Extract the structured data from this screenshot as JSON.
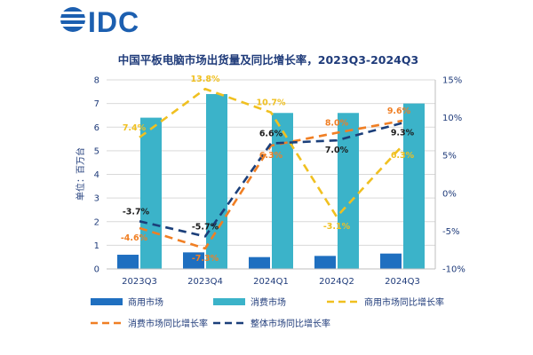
{
  "logo": {
    "text": "IDC"
  },
  "chart_data": {
    "type": "bar",
    "title": "中国平板电脑市场出货量及同比增长率，2023Q3-2024Q3",
    "ylabel": "单位：百万台",
    "categories": [
      "2023Q3",
      "2023Q4",
      "2024Q1",
      "2024Q2",
      "2024Q3"
    ],
    "ylim": [
      0,
      8
    ],
    "y2lim": [
      -10,
      15
    ],
    "yticks": [
      "0",
      "1",
      "2",
      "3",
      "4",
      "5",
      "6",
      "7",
      "8"
    ],
    "y2ticks": [
      "-10%",
      "-5%",
      "0%",
      "5%",
      "10%",
      "15%"
    ],
    "bar_series": [
      {
        "name": "商用市场",
        "color": "#1f6fc0",
        "values": [
          0.6,
          0.7,
          0.5,
          0.55,
          0.65
        ]
      },
      {
        "name": "消费市场",
        "color": "#3bb3c9",
        "values": [
          6.4,
          7.4,
          6.6,
          6.6,
          7.0
        ]
      }
    ],
    "line_series": [
      {
        "name": "商用市场同比增长率",
        "color": "#f0c020",
        "values": [
          7.4,
          13.8,
          10.7,
          -3.1,
          6.3
        ],
        "labels": [
          "7.4%",
          "13.8%",
          "10.7%",
          "-3.1%",
          "6.3%"
        ]
      },
      {
        "name": "消费市场同比增长率",
        "color": "#f07f24",
        "values": [
          -4.6,
          -7.3,
          6.3,
          8.0,
          9.6
        ],
        "labels": [
          "-4.6%",
          "-7.3%",
          "6.3%",
          "8.0%",
          "9.6%"
        ]
      },
      {
        "name": "整体市场同比增长率",
        "color": "#1b3f7a",
        "values": [
          -3.7,
          -5.7,
          6.6,
          7.0,
          9.3
        ],
        "labels": [
          "-3.7%",
          "-5.7%",
          "6.6%",
          "7.0%",
          "9.3%"
        ]
      }
    ],
    "legend_position": "bottom"
  }
}
